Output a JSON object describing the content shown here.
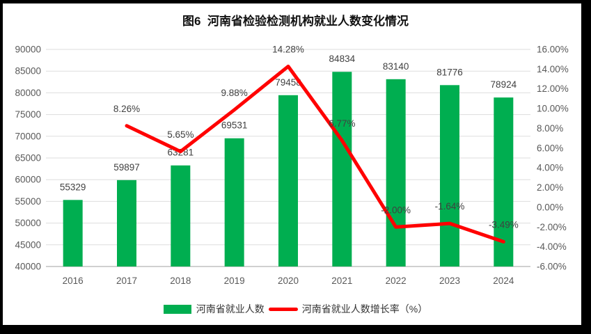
{
  "title": "图6  河南省检验检测机构就业人数变化情况",
  "legend": {
    "bar_label": "河南省就业人数",
    "line_label": "河南省就业人数增长率（%）"
  },
  "colors": {
    "bar": "#00AE50",
    "line": "#FF0000",
    "grid": "#DDDDDD",
    "axis_line": "#C0C0C0",
    "tick_text": "#595959",
    "label_text": "#404040",
    "frame": "#000000",
    "background": "#FFFFFF"
  },
  "chart_data": {
    "type": "bar+line combo",
    "title": "图6  河南省检验检测机构就业人数变化情况",
    "categories": [
      "2016",
      "2017",
      "2018",
      "2019",
      "2020",
      "2021",
      "2022",
      "2023",
      "2024"
    ],
    "series": [
      {
        "name": "河南省就业人数",
        "chart": "bar",
        "axis": "primary-left",
        "color": "#00AE50",
        "values": [
          55329,
          59897,
          63281,
          69531,
          79458,
          84834,
          83140,
          81776,
          78924
        ],
        "data_labels": [
          "55329",
          "59897",
          "63281",
          "69531",
          "79458",
          "84834",
          "83140",
          "81776",
          "78924"
        ]
      },
      {
        "name": "河南省就业人数增长率（%）",
        "chart": "line",
        "axis": "secondary-right",
        "color": "#FF0000",
        "values": [
          null,
          8.26,
          5.65,
          9.88,
          14.28,
          6.77,
          -2.0,
          -1.64,
          -3.49
        ],
        "data_labels": [
          "",
          "8.26%",
          "5.65%",
          "9.88%",
          "14.28%",
          "6.77%",
          "-2.00%",
          "-1.64%",
          "-3.49%"
        ]
      }
    ],
    "left_axis": {
      "min": 40000,
      "max": 90000,
      "step": 5000,
      "tick_labels": [
        "90000",
        "85000",
        "80000",
        "75000",
        "70000",
        "65000",
        "60000",
        "55000",
        "50000",
        "45000",
        "40000"
      ]
    },
    "right_axis": {
      "min": -6,
      "max": 16,
      "step": 2,
      "tick_labels": [
        "16.00%",
        "14.00%",
        "12.00%",
        "10.00%",
        "8.00%",
        "6.00%",
        "4.00%",
        "2.00%",
        "0.00%",
        "-2.00%",
        "-4.00%",
        "-6.00%"
      ]
    },
    "grid": true,
    "legend_position": "bottom"
  }
}
